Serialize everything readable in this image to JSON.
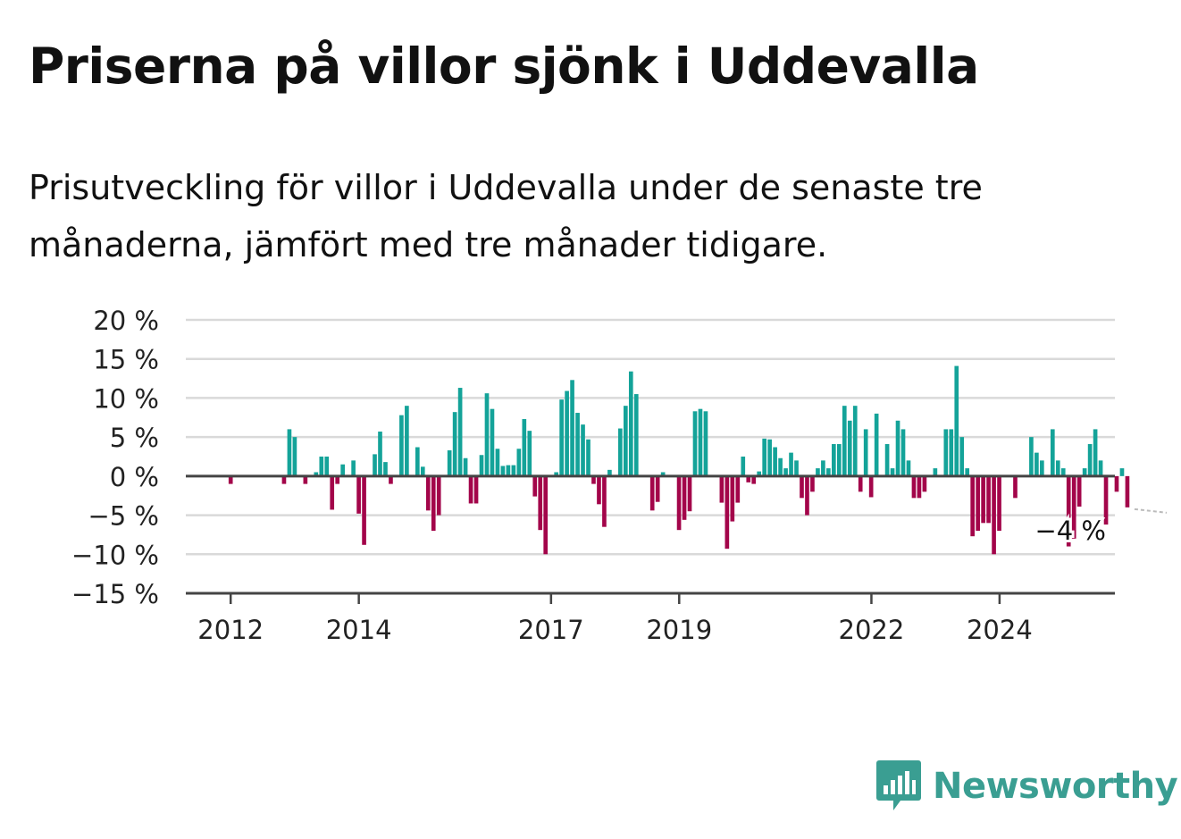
{
  "title": "Priserna på villor sjönk i Uddevalla",
  "subtitle": "Prisutveckling för villor i Uddevalla under de senaste tre månaderna, jämfört med tre månader tidigare.",
  "brand": {
    "name": "Newsworthy",
    "icon": "newsworthy-bar-logo-icon"
  },
  "colors": {
    "positive": "#14a399",
    "negative": "#a3054a",
    "grid": "#d9d9d9",
    "axis": "#444444",
    "brand": "#3a9e92"
  },
  "chart_data": {
    "type": "bar",
    "title": "",
    "xlabel": "",
    "ylabel": "",
    "ylim": [
      -15,
      20
    ],
    "y_ticks": [
      20,
      15,
      10,
      5,
      0,
      -5,
      -10,
      -15
    ],
    "y_tick_labels": [
      "20 %",
      "15 %",
      "10 %",
      "5 %",
      "0 %",
      "−5 %",
      "−10 %",
      "−15 %"
    ],
    "x_ticks": [
      "2012",
      "2014",
      "2017",
      "2019",
      "2022",
      "2024"
    ],
    "x_tick_positions": [
      2012.0,
      2014.0,
      2017.0,
      2019.0,
      2022.0,
      2024.0
    ],
    "x_range": [
      2011.3,
      2025.8
    ],
    "grid": true,
    "start": 2012.0,
    "step": 0.0833,
    "values": [
      -1,
      0,
      0,
      0,
      0,
      0,
      0,
      0,
      0,
      0,
      -1,
      6,
      5,
      0,
      -1,
      0,
      0.5,
      2.5,
      2.5,
      -4.3,
      -1,
      1.5,
      0,
      2,
      -4.8,
      -8.8,
      0,
      2.8,
      5.7,
      1.8,
      -1,
      0,
      7.8,
      9,
      0,
      3.7,
      1.2,
      -4.4,
      -7,
      -5,
      0,
      3.3,
      8.2,
      11.3,
      2.3,
      -3.5,
      -3.5,
      2.7,
      10.6,
      8.6,
      3.5,
      1.3,
      1.4,
      1.4,
      3.5,
      7.3,
      5.8,
      -2.6,
      -6.9,
      -10,
      0,
      0.5,
      9.8,
      10.9,
      12.3,
      8.1,
      6.6,
      4.7,
      -1,
      -3.6,
      -6.5,
      0.8,
      0,
      6.1,
      9,
      13.4,
      10.5,
      0,
      0,
      -4.4,
      -3.3,
      0.5,
      0,
      0,
      -6.9,
      -5.6,
      -4.5,
      8.3,
      8.6,
      8.3,
      0,
      0,
      -3.4,
      -9.3,
      -5.8,
      -3.4,
      2.5,
      -0.8,
      -1,
      0.6,
      4.8,
      4.7,
      3.7,
      2.3,
      1,
      3,
      2,
      -2.8,
      -5,
      -2,
      1,
      2,
      1,
      4.1,
      4.1,
      9,
      7.1,
      9,
      -2,
      6,
      -2.7,
      8,
      0,
      4.1,
      1,
      7.1,
      6,
      2,
      -2.8,
      -2.8,
      -2,
      0,
      1,
      0,
      6,
      6,
      14.1,
      5,
      1,
      -7.7,
      -7,
      -6,
      -6,
      -10,
      -7,
      0,
      0,
      -2.8,
      0,
      0,
      5,
      3,
      2,
      0,
      6,
      2,
      1,
      -9,
      -8,
      -3.9,
      1,
      4.1,
      6,
      2,
      -6.2,
      0,
      -2,
      1,
      -4
    ],
    "annotation": {
      "text": "−4 %",
      "value": -4
    }
  }
}
